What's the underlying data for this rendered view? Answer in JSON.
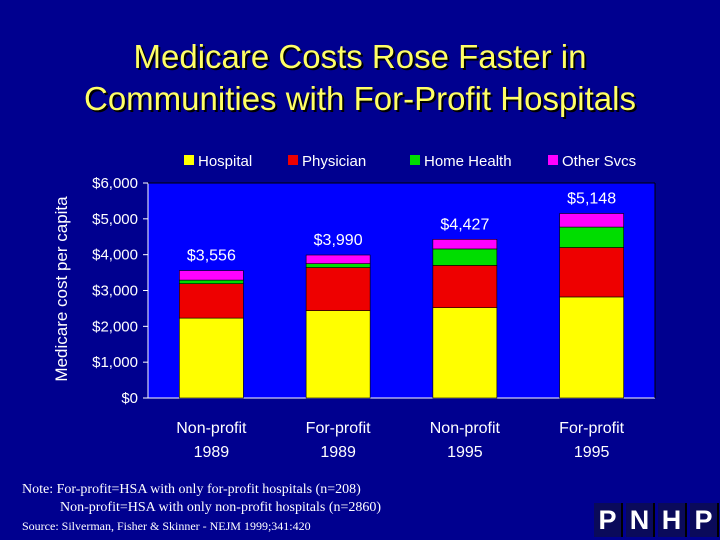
{
  "chart_data": {
    "type": "bar",
    "stacked": true,
    "title": "Medicare Costs Rose Faster in Communities with For-Profit Hospitals",
    "title_lines": [
      "Medicare Costs Rose Faster in",
      "Communities with For-Profit Hospitals"
    ],
    "xlabel": "",
    "ylabel": "Medicare cost per capita",
    "ylim": [
      0,
      6000
    ],
    "yticks": [
      0,
      1000,
      2000,
      3000,
      4000,
      5000,
      6000
    ],
    "ytick_labels": [
      "$0",
      "$1,000",
      "$2,000",
      "$3,000",
      "$4,000",
      "$5,000",
      "$6,000"
    ],
    "categories": [
      [
        "Non-profit",
        "1989"
      ],
      [
        "For-profit",
        "1989"
      ],
      [
        "Non-profit",
        "1995"
      ],
      [
        "For-profit",
        "1995"
      ]
    ],
    "series": [
      {
        "name": "Hospital",
        "color": "#ffff00",
        "values": [
          2230,
          2440,
          2520,
          2820
        ]
      },
      {
        "name": "Physician",
        "color": "#ee0000",
        "values": [
          960,
          1200,
          1180,
          1380
        ]
      },
      {
        "name": "Home Health",
        "color": "#00dd00",
        "values": [
          100,
          110,
          460,
          570
        ]
      },
      {
        "name": "Other Svcs",
        "color": "#ff00ff",
        "values": [
          266,
          240,
          267,
          378
        ]
      }
    ],
    "totals": [
      3556,
      3990,
      4427,
      5148
    ],
    "total_labels": [
      "$3,556",
      "$3,990",
      "$4,427",
      "$5,148"
    ],
    "legend_position": "top",
    "grid": false
  },
  "notes": {
    "line1": "Note: For-profit=HSA with only for-profit hospitals (n=208)",
    "line2": "Non-profit=HSA with only non-profit hospitals (n=2860)",
    "source": "Source: Silverman, Fisher & Skinner - NEJM 1999;341:420"
  },
  "logo": {
    "letters": [
      "P",
      "N",
      "H",
      "P"
    ]
  }
}
